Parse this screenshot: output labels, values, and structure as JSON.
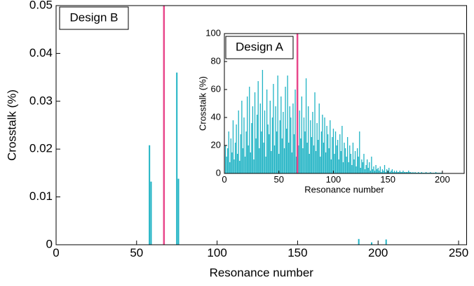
{
  "chart_data": [
    {
      "type": "bar",
      "label": "Design B",
      "xlabel": "Resonance number",
      "ylabel": "Crosstalk (%)",
      "x": [
        58,
        59,
        75,
        76,
        188,
        196,
        205
      ],
      "values": [
        0.0208,
        0.0132,
        0.036,
        0.0138,
        0.0012,
        0.0005,
        0.0011
      ],
      "color": "#1fb3c4",
      "xlim": [
        0,
        255
      ],
      "xticks": [
        0,
        50,
        100,
        150,
        200,
        250
      ],
      "ylim": [
        0,
        0.05
      ],
      "yticks": [
        0,
        0.01,
        0.02,
        0.03,
        0.04,
        0.05
      ],
      "vline": {
        "x": 67,
        "color": "#e8468a"
      }
    },
    {
      "type": "bar",
      "label": "Design A",
      "xlabel": "Resonance number",
      "ylabel": "Crosstalk (%)",
      "x": [
        1,
        2,
        3,
        4,
        5,
        6,
        7,
        8,
        9,
        10,
        11,
        12,
        13,
        14,
        15,
        16,
        17,
        18,
        19,
        20,
        21,
        22,
        23,
        24,
        25,
        26,
        27,
        28,
        29,
        30,
        31,
        32,
        33,
        34,
        35,
        36,
        37,
        38,
        39,
        40,
        41,
        42,
        43,
        44,
        45,
        46,
        47,
        48,
        49,
        50,
        51,
        52,
        53,
        54,
        55,
        56,
        57,
        58,
        59,
        60,
        61,
        62,
        63,
        64,
        65,
        66,
        67,
        68,
        69,
        70,
        71,
        72,
        73,
        74,
        75,
        76,
        77,
        78,
        79,
        80,
        81,
        82,
        83,
        84,
        85,
        86,
        87,
        88,
        89,
        90,
        91,
        92,
        93,
        94,
        95,
        96,
        97,
        98,
        99,
        100,
        101,
        102,
        103,
        104,
        105,
        106,
        107,
        108,
        109,
        110,
        111,
        112,
        113,
        114,
        115,
        116,
        117,
        118,
        119,
        120,
        121,
        122,
        123,
        124,
        125,
        126,
        127,
        128,
        129,
        130,
        131,
        132,
        133,
        134,
        135,
        136,
        137,
        138,
        139,
        140,
        141,
        142,
        143,
        144,
        145,
        146,
        147,
        148,
        149,
        150,
        151,
        152,
        153,
        154,
        155,
        156,
        157,
        158,
        159,
        160,
        161,
        162,
        163,
        164,
        165,
        166,
        167,
        168,
        169,
        170,
        171,
        172,
        173,
        174,
        175,
        176,
        177,
        178,
        179,
        180,
        181,
        182,
        183,
        184,
        185,
        186,
        187,
        188,
        189,
        190,
        191,
        192,
        193,
        194,
        195,
        196,
        197,
        198,
        199,
        200
      ],
      "values": [
        20,
        12,
        18,
        30,
        8,
        25,
        15,
        38,
        10,
        22,
        35,
        14,
        45,
        9,
        28,
        52,
        18,
        40,
        12,
        30,
        55,
        20,
        62,
        15,
        36,
        48,
        10,
        58,
        25,
        42,
        66,
        18,
        50,
        30,
        74,
        22,
        45,
        12,
        60,
        35,
        28,
        52,
        16,
        40,
        64,
        20,
        48,
        30,
        70,
        14,
        38,
        55,
        25,
        44,
        18,
        62,
        32,
        70,
        22,
        48,
        40,
        15,
        50,
        28,
        60,
        12,
        35,
        20,
        45,
        25,
        55,
        18,
        40,
        30,
        68,
        22,
        48,
        14,
        38,
        26,
        44,
        20,
        58,
        16,
        36,
        24,
        50,
        12,
        30,
        42,
        22,
        40,
        15,
        34,
        28,
        18,
        38,
        10,
        26,
        32,
        14,
        30,
        20,
        24,
        10,
        28,
        16,
        34,
        8,
        22,
        18,
        12,
        26,
        8,
        20,
        14,
        6,
        22,
        10,
        16,
        5,
        18,
        12,
        30,
        4,
        10,
        8,
        14,
        3,
        6,
        10,
        4,
        8,
        2,
        12,
        3,
        5,
        2,
        6,
        3,
        4,
        2,
        5,
        1,
        3,
        2,
        6,
        1,
        3,
        2,
        4,
        1,
        2,
        3,
        1,
        2,
        1,
        2,
        1,
        1,
        2,
        1,
        1,
        2,
        1,
        1,
        1,
        1,
        2,
        1,
        1,
        0.5,
        1,
        0.5,
        1,
        0.5,
        0.5,
        1,
        0.5,
        0.5,
        1,
        0.5,
        0.5,
        0.5,
        1,
        0.5,
        0.5,
        0.5,
        1,
        0.5,
        0.5,
        0.5,
        0.5,
        1,
        0.5,
        0.5,
        0.5,
        0.5,
        0.5,
        0.5
      ],
      "color": "#1fb3c4",
      "xlim": [
        0,
        220
      ],
      "xticks": [
        0,
        50,
        100,
        150,
        200
      ],
      "ylim": [
        0,
        100
      ],
      "yticks": [
        0,
        20,
        40,
        60,
        80,
        100
      ],
      "vline": {
        "x": 67,
        "color": "#e8468a"
      }
    }
  ]
}
